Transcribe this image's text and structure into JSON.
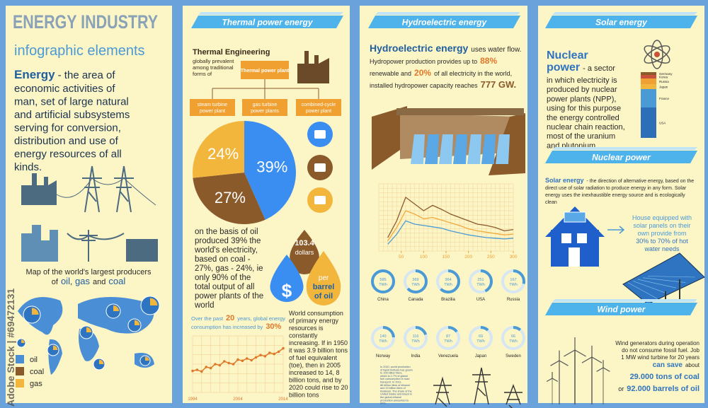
{
  "watermark": "Adobe Stock | #69472131",
  "panel1": {
    "title": "ENERGY INDUSTRY",
    "subtitle": "infographic elements",
    "lead": "Energy",
    "body": [
      "- the area of",
      "economic activities of",
      "man, set of large natural",
      "and artificial subsystems",
      "serving for conversion,",
      "distribution and use of",
      "energy resources of all",
      "kinds."
    ],
    "map_caption": [
      "Map of the world's largest producers",
      "of",
      "oil",
      ",",
      "gas",
      "and",
      "coal"
    ],
    "legend": [
      {
        "name": "oil",
        "color": "#4a8fd6"
      },
      {
        "name": "coal",
        "color": "#8a5a2b"
      },
      {
        "name": "gas",
        "color": "#f2b63c"
      }
    ]
  },
  "panel2": {
    "header": "Thermal power energy",
    "engineering_title": "Thermal Engineering",
    "engineering_text": [
      "globally prevalent",
      "among traditional",
      "forms of"
    ],
    "plant": "Thermal power plant",
    "branches": [
      [
        "steam turbine",
        "power plant"
      ],
      [
        "gas turbine",
        "power plants"
      ],
      [
        "combined-cycle",
        "power plant"
      ]
    ],
    "pie": {
      "values": [
        39,
        27,
        24
      ],
      "value_labels": [
        "39%",
        "27%",
        "24%"
      ],
      "colors": [
        "#3a8ef2",
        "#8a5a2b",
        "#f2b63c"
      ]
    },
    "pie_text": [
      "on the basis of oil",
      "produced 39% the",
      "world's electricity,",
      "based on coal -",
      "27%, gas - 24%, ie",
      "only 90% of the",
      "total output of all",
      "power plants of the",
      "world"
    ],
    "oil_price": "103.4",
    "oil_unit": "dollars",
    "dollar_sign": "$",
    "per_barrel": [
      "per",
      "barrel",
      "of oil"
    ],
    "growth_caption": [
      "Over the past",
      "20",
      "years, global energy",
      "consumption has increased by",
      "30%"
    ],
    "growth_chart": {
      "type": "line",
      "color": "#e0782a",
      "values": [
        38,
        40,
        37,
        45,
        43,
        50,
        48,
        55,
        52,
        50,
        58,
        56,
        60,
        57,
        62,
        66,
        64,
        70,
        68,
        72,
        78
      ],
      "ylim": [
        0,
        100
      ],
      "x_labels": [
        "1994",
        "2004",
        "2014"
      ]
    },
    "consumption_text": [
      "World consumption",
      "of primary energy",
      "resources is",
      "constantly",
      "increasing. If in 1950",
      "it was 3.9 billion tons",
      "of fuel equivalent",
      "(toe), then in 2005",
      "increased to 14, 8",
      "billion tons, and by",
      "2020 could rise to 20",
      "billion tons"
    ]
  },
  "panel3": {
    "header": "Hydroelectric energy",
    "title": "Hydroelectric energy",
    "title_rest": "uses water flow.",
    "line1": [
      "Hydropower production provides up to",
      "88%"
    ],
    "line2": [
      "renewable and",
      "20%",
      "of all electricity in the world,"
    ],
    "line3": [
      "installed hydropower capacity reaches",
      "777 GW."
    ],
    "chart": {
      "type": "line",
      "x": [
        20,
        40,
        60,
        80,
        100,
        120,
        140,
        160,
        180,
        200,
        220,
        240,
        260,
        280,
        300
      ],
      "xlim": [
        0,
        300
      ],
      "xticks": [
        50,
        100,
        150,
        200,
        250,
        300
      ],
      "ylim": [
        0,
        100
      ],
      "series": [
        {
          "color": "#8a5a2b",
          "values": [
            20,
            45,
            80,
            70,
            60,
            68,
            62,
            55,
            50,
            45,
            40,
            38,
            35,
            30,
            32
          ]
        },
        {
          "color": "#f2a93c",
          "values": [
            15,
            35,
            60,
            55,
            48,
            50,
            46,
            42,
            38,
            33,
            30,
            28,
            26,
            24,
            25
          ]
        },
        {
          "color": "#4a9ad6",
          "values": [
            10,
            25,
            45,
            40,
            38,
            36,
            34,
            30,
            27,
            24,
            22,
            20,
            19,
            18,
            19
          ]
        }
      ]
    },
    "unit": "TWh",
    "producers": [
      {
        "name": "China",
        "value": 585
      },
      {
        "name": "Canada",
        "value": 369
      },
      {
        "name": "Brazilia",
        "value": 364
      },
      {
        "name": "USA",
        "value": 251
      },
      {
        "name": "Russia",
        "value": 167
      },
      {
        "name": "Norway",
        "value": 140
      },
      {
        "name": "India",
        "value": 116
      },
      {
        "name": "Venezuela",
        "value": 87
      },
      {
        "name": "Japan",
        "value": 69
      },
      {
        "name": "Sweden",
        "value": 66
      }
    ],
    "note": [
      "In 2010, world production",
      "of liquid biofuels has grown",
      "to 105 billion liters,",
      "which is 2.7% of global",
      "fuel consumption in road",
      "transport. In 2011,",
      "86 billion liters of ethanol",
      "and 19 billion liters of",
      "biodiesel. The share of the",
      "United States and Brazil in",
      "the global ethanol",
      "production amounted to",
      "90%."
    ]
  },
  "panel4": {
    "header_top": "Solar energy",
    "nuclear_title": "Nuclear",
    "nuclear_title2": "power",
    "nuclear_first": "- a sector",
    "nuclear_text": [
      "in which electricity is",
      "produced by nuclear",
      "power plants (NPP),",
      "using for this purpose",
      "the energy controlled",
      "nuclear chain reaction,",
      "most of the uranium",
      "and plutonium."
    ],
    "nuclear_chart": {
      "type": "stacked-bar",
      "ylim": [
        0,
        100
      ],
      "segments": [
        {
          "name": "USA",
          "value": 43,
          "color": "#2c6fb6"
        },
        {
          "name": "France",
          "value": 26,
          "color": "#4a9ad6"
        },
        {
          "name": "Japan",
          "value": 7,
          "color": "#f2b63c"
        },
        {
          "name": "Russia",
          "value": 8,
          "color": "#f0a030"
        },
        {
          "name": "Korea",
          "value": 5,
          "color": "#c9503a"
        },
        {
          "name": "Germany",
          "value": 4,
          "color": "#8a5a2b"
        }
      ]
    },
    "header_mid": "Nuclear power",
    "solar_title": "Solar energy",
    "solar_text": [
      "- the direction of alternative energy, based on the",
      "direct use of solar radiation to produce energy in any form. Solar",
      "energy uses the inexhaustible energy source and is ecologically",
      "clean"
    ],
    "house_text": [
      "House equipped with",
      "solar panels on their",
      "own provide from"
    ],
    "house_highlight": [
      "30% to 70% of hot",
      "water needs"
    ],
    "header_bottom": "Wind power",
    "wind_text": [
      "Wind generators during operation",
      "do not consume fossil fuel. Job",
      "1 MW wind turbine for 20 years"
    ],
    "can_save": [
      "can save",
      "about"
    ],
    "coal": "29.000 tons of coal",
    "or": "or",
    "oil": "92.000 barrels of oil"
  }
}
